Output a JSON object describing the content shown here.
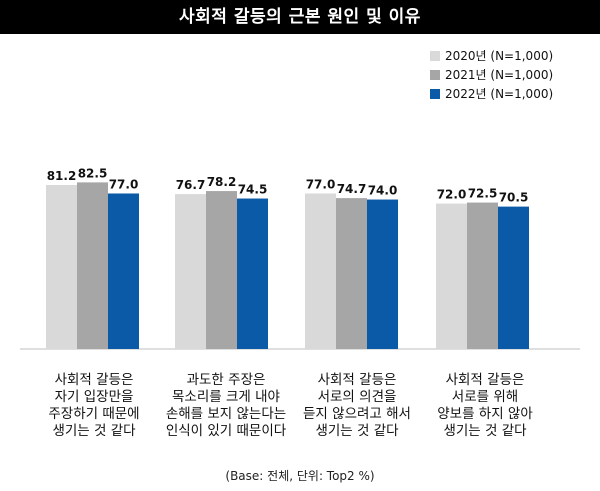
{
  "title": "사회적 갈등의 근본 원인 및 이유",
  "note": "(Base: 전체, 단위: Top2 %)",
  "chart_data": {
    "type": "bar",
    "ylim": [
      0,
      100
    ],
    "categories": [
      "사회적 갈등은\n자기 입장만을\n주장하기 때문에\n생기는 것 같다",
      "과도한 주장은\n목소리를 크게 내야\n손해를 보지 않는다는\n인식이 있기 때문이다",
      "사회적 갈등은\n서로의 의견을\n듣지 않으려고 해서\n생기는 것 같다",
      "사회적 갈등은\n서로를 위해\n양보를 하지 않아\n생기는 것 같다"
    ],
    "series": [
      {
        "name": "2020년 (N=1,000)",
        "color": "#d9d9d9",
        "values": [
          81.2,
          76.7,
          77.0,
          72.0
        ]
      },
      {
        "name": "2021년 (N=1,000)",
        "color": "#a6a6a6",
        "values": [
          82.5,
          78.2,
          74.7,
          72.5
        ]
      },
      {
        "name": "2022년 (N=1,000)",
        "color": "#0a5aa8",
        "values": [
          77.0,
          74.5,
          74.0,
          70.5
        ]
      }
    ],
    "legend_position": "top-right",
    "grid": false
  }
}
